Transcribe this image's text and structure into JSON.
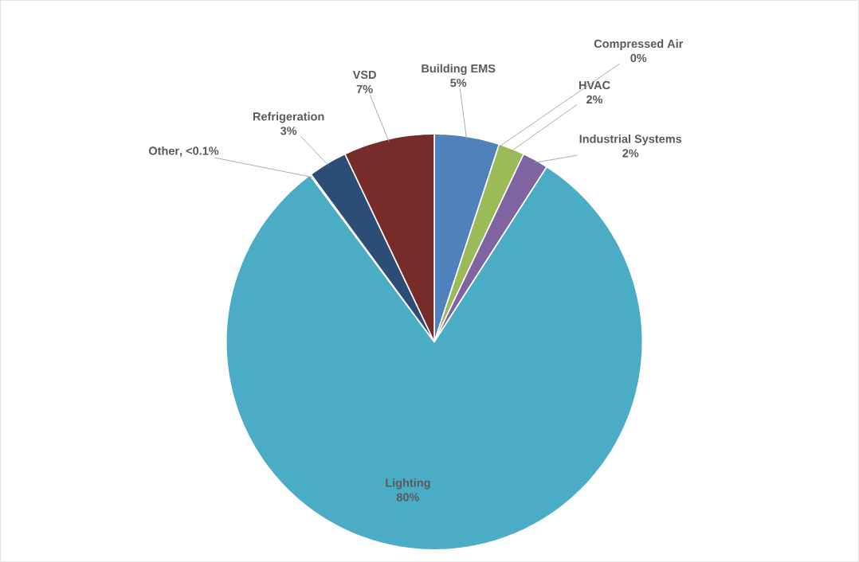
{
  "chart_data": {
    "type": "pie",
    "categories": [
      "Building EMS",
      "Compressed Air",
      "HVAC",
      "Industrial Systems",
      "Lighting",
      "Other",
      "Refrigeration",
      "VSD"
    ],
    "values": [
      5,
      0,
      2,
      2,
      80,
      0.1,
      3,
      7
    ],
    "value_labels": [
      "5%",
      "0%",
      "2%",
      "2%",
      "80%",
      ", <0.1%",
      "3%",
      "7%"
    ],
    "colors": [
      "#4f81bd",
      "#c0504d",
      "#9bbb59",
      "#8064a2",
      "#4bacc6",
      "#f79646",
      "#2c4d75",
      "#772c2a"
    ]
  }
}
